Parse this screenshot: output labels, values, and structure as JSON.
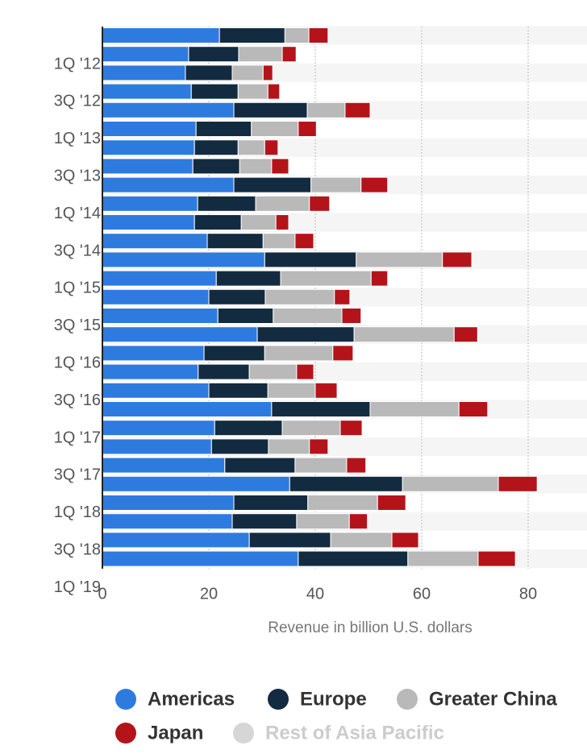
{
  "chart_data": {
    "type": "stacked-bar-horizontal",
    "categories": [
      "1Q '12",
      null,
      "3Q '12",
      null,
      "1Q '13",
      null,
      "3Q '13",
      null,
      "1Q '14",
      null,
      "3Q '14",
      null,
      "1Q '15",
      null,
      "3Q '15",
      null,
      "1Q '16",
      null,
      "3Q '16",
      null,
      "1Q '17",
      null,
      "3Q '17",
      null,
      "1Q '18",
      null,
      "3Q '18",
      null,
      "1Q '19"
    ],
    "series": [
      {
        "name": "Americas",
        "color": "#2e7be0",
        "values": [
          22.0,
          16.2,
          15.6,
          16.7,
          24.7,
          17.6,
          17.3,
          17.0,
          24.7,
          17.9,
          17.3,
          19.7,
          30.5,
          21.4,
          20.0,
          21.7,
          29.1,
          19.1,
          18.0,
          20.0,
          31.8,
          21.1,
          20.5,
          23.0,
          35.2,
          24.7,
          24.4,
          27.6,
          36.8
        ]
      },
      {
        "name": "Europe",
        "color": "#132b40",
        "values": [
          12.3,
          9.4,
          8.8,
          8.8,
          13.8,
          10.4,
          8.2,
          8.8,
          14.5,
          10.9,
          8.8,
          10.5,
          17.2,
          12.1,
          10.6,
          10.4,
          18.2,
          11.4,
          9.6,
          11.1,
          18.5,
          12.7,
          10.7,
          13.2,
          21.2,
          13.9,
          12.1,
          15.3,
          20.6
        ]
      },
      {
        "name": "Greater China",
        "color": "#b9b9b9",
        "values": [
          4.5,
          8.2,
          5.8,
          5.6,
          7.1,
          8.8,
          5.0,
          6.0,
          9.4,
          10.1,
          6.5,
          6.0,
          16.2,
          17.0,
          13.0,
          12.9,
          18.8,
          12.8,
          8.9,
          8.9,
          16.7,
          10.9,
          7.7,
          9.7,
          18.0,
          13.1,
          9.9,
          11.5,
          13.2
        ]
      },
      {
        "name": "Japan",
        "color": "#b41419",
        "values": [
          3.6,
          2.6,
          1.8,
          2.2,
          4.7,
          3.4,
          2.5,
          3.2,
          5.0,
          3.8,
          2.4,
          3.5,
          5.5,
          3.1,
          2.9,
          3.6,
          4.4,
          3.8,
          3.2,
          4.1,
          5.4,
          4.1,
          3.5,
          3.6,
          7.3,
          5.3,
          3.4,
          5.0,
          7.0
        ]
      },
      {
        "name": "Rest of Asia Pacific",
        "color": "#d6d6d6",
        "values": [
          null,
          null,
          null,
          null,
          null,
          null,
          null,
          null,
          null,
          null,
          null,
          null,
          null,
          null,
          null,
          null,
          null,
          null,
          null,
          null,
          null,
          null,
          null,
          null,
          null,
          null,
          null,
          null,
          null
        ]
      }
    ],
    "x_label": "Revenue in billion U.S. dollars",
    "xlim": [
      0,
      90
    ],
    "xticks": [
      0,
      20,
      40,
      60,
      80
    ],
    "grid": true
  }
}
